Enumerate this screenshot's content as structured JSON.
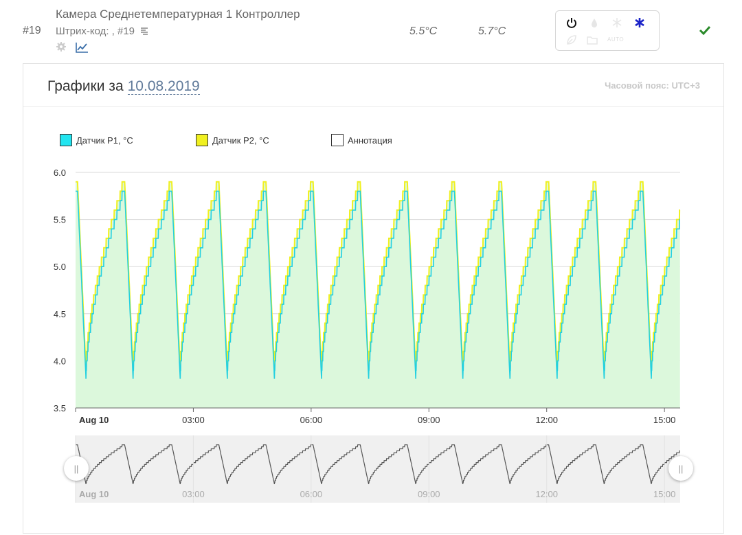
{
  "device": {
    "id": "#19",
    "name": "Камера Среднетемпературная 1 Контроллер",
    "barcode": "Штрих-код: , #19",
    "temp_1": "5.5°C",
    "temp_2": "5.7°C",
    "status_auto_label": "AUTO",
    "icons": [
      "gear-icon",
      "chart-icon",
      "barcode-icon",
      "power-icon",
      "drop-icon",
      "snowflake-icon",
      "asterisk-icon",
      "leaf-icon",
      "folder-icon",
      "checkmark-icon"
    ],
    "colors": {
      "power": "#111111",
      "asterisk": "#1a22c8",
      "check": "#2a8a2a",
      "inactive": "#dddddd"
    }
  },
  "panel": {
    "title_prefix": "Графики за",
    "date": "10.08.2019",
    "timezone": "Часовой пояс: UTC+3"
  },
  "legend": [
    {
      "label": "Датчик P1, °C",
      "color": "#22e5f0"
    },
    {
      "label": "Датчик P2, °C",
      "color": "#f0f020"
    },
    {
      "label": "Аннотация",
      "color": "#ffffff"
    }
  ],
  "chart_data": {
    "type": "line",
    "y_ticks": [
      "6.0",
      "5.5",
      "5.0",
      "4.5",
      "4.0",
      "3.5"
    ],
    "ylim": [
      3.5,
      6.0
    ],
    "x_ticks": [
      "Aug 10",
      "03:00",
      "06:00",
      "09:00",
      "12:00",
      "15:00"
    ],
    "x_hours_range": [
      0,
      15.4
    ],
    "grid": true,
    "area_fill": "#dcf8dc",
    "series": [
      {
        "name": "Датчик P1, °C",
        "color": "#22d0e0",
        "cycle_hours": 1.2,
        "first_max_hours": 0.05,
        "min": 3.8,
        "max": 5.8,
        "step": 0.1
      },
      {
        "name": "Датчик P2, °C",
        "color": "#f0f020",
        "cycle_hours": 1.2,
        "first_max_hours": 0.05,
        "min": 3.9,
        "max": 5.9,
        "step": 0.1
      }
    ],
    "navigator": {
      "x_ticks": [
        "Aug 10",
        "03:00",
        "06:00",
        "09:00",
        "12:00",
        "15:00"
      ],
      "line_color": "#555555",
      "bg": "#f0f0f0"
    }
  }
}
